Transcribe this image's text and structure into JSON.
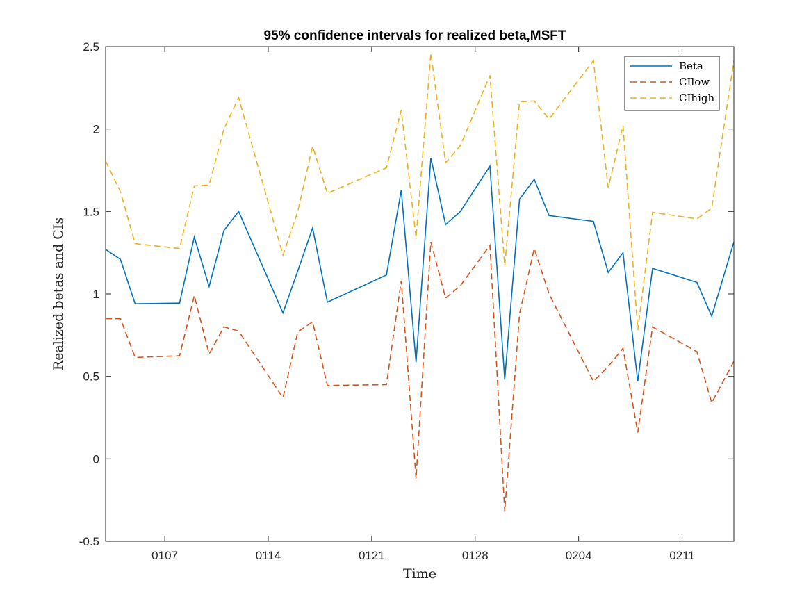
{
  "chart_data": {
    "type": "line",
    "title": "95% confidence intervals for realized beta,MSFT",
    "xlabel": "Time",
    "ylabel": "Realized betas and CIs",
    "xlim": [
      1,
      43.5
    ],
    "ylim": [
      -0.5,
      2.5
    ],
    "yticks": [
      -0.5,
      0,
      0.5,
      1,
      1.5,
      2,
      2.5
    ],
    "ytick_labels": [
      "-0.5",
      "0",
      "0.5",
      "1",
      "1.5",
      "2",
      "2.5"
    ],
    "xticks": [
      5,
      12,
      19,
      26,
      33,
      40
    ],
    "xtick_labels": [
      "0107",
      "0114",
      "0121",
      "0128",
      "0204",
      "0211"
    ],
    "legend_position": "top-right",
    "grid": false,
    "x": [
      1,
      2,
      3,
      6,
      7,
      8,
      9,
      10,
      13,
      14,
      15,
      16,
      20,
      21,
      22,
      23,
      24,
      25,
      27,
      28,
      29,
      30,
      31,
      34,
      35,
      36,
      37,
      38,
      41,
      42,
      43.5
    ],
    "series": [
      {
        "name": "Beta",
        "color": "#0072BD",
        "style": "solid",
        "values": [
          1.27,
          1.21,
          0.94,
          0.945,
          1.345,
          1.045,
          1.385,
          1.5,
          0.885,
          1.14,
          1.4,
          0.95,
          1.115,
          1.63,
          0.585,
          1.825,
          1.42,
          1.5,
          1.775,
          0.48,
          1.575,
          1.695,
          1.475,
          1.44,
          1.13,
          1.25,
          0.47,
          1.155,
          1.07,
          0.865,
          1.315
        ]
      },
      {
        "name": "CIlow",
        "color": "#D95319",
        "style": "dashed",
        "values": [
          0.85,
          0.85,
          0.615,
          0.625,
          0.99,
          0.635,
          0.8,
          0.775,
          0.37,
          0.77,
          0.83,
          0.445,
          0.45,
          1.08,
          -0.12,
          1.315,
          0.975,
          1.05,
          1.295,
          -0.32,
          0.88,
          1.275,
          1.0,
          0.47,
          0.56,
          0.67,
          0.16,
          0.8,
          0.65,
          0.34,
          0.59
        ]
      },
      {
        "name": "CIhigh",
        "color": "#EDB120",
        "style": "dashed",
        "values": [
          1.805,
          1.62,
          1.305,
          1.275,
          1.655,
          1.66,
          2.0,
          2.19,
          1.235,
          1.5,
          1.895,
          1.61,
          1.765,
          2.115,
          1.34,
          2.46,
          1.795,
          1.9,
          2.325,
          1.17,
          2.165,
          2.17,
          2.06,
          2.415,
          1.645,
          2.02,
          0.78,
          1.495,
          1.455,
          1.52,
          2.415
        ]
      }
    ]
  }
}
